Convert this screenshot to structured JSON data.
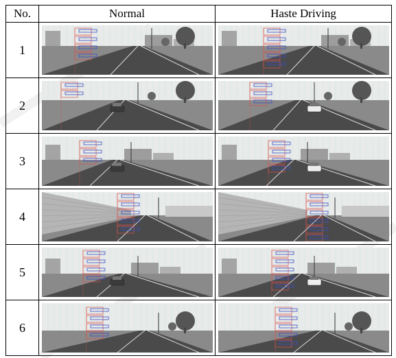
{
  "table": {
    "headers": {
      "no": "No.",
      "normal": "Normal",
      "haste": "Haste Driving"
    },
    "rows": [
      {
        "num": "1"
      },
      {
        "num": "2"
      },
      {
        "num": "3"
      },
      {
        "num": "4"
      },
      {
        "num": "5"
      },
      {
        "num": "6"
      }
    ]
  },
  "colors": {
    "sky": "#e8ebea",
    "road": "#4a4a4a",
    "marker_red": "#d9534f",
    "marker_blue": "#3b4fc4",
    "grid_green": "#66c2a0"
  }
}
